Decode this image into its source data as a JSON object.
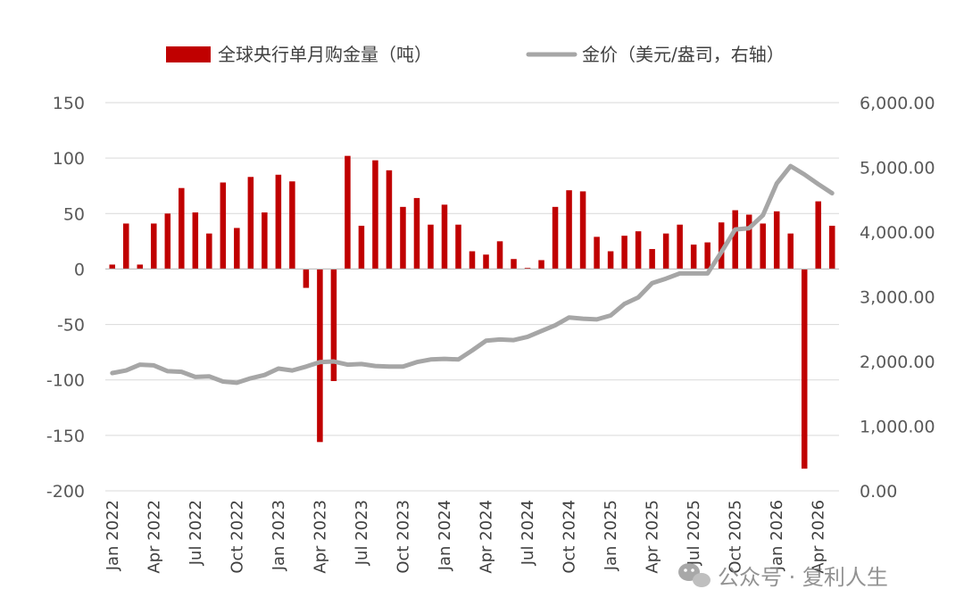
{
  "chart_data": {
    "type": "bar+line",
    "categories": [
      "Jan 2022",
      "Feb 2022",
      "Mar 2022",
      "Apr 2022",
      "May 2022",
      "Jun 2022",
      "Jul 2022",
      "Aug 2022",
      "Sep 2022",
      "Oct 2022",
      "Nov 2022",
      "Dec 2022",
      "Jan 2023",
      "Feb 2023",
      "Mar 2023",
      "Apr 2023",
      "May 2023",
      "Jun 2023",
      "Jul 2023",
      "Aug 2023",
      "Sep 2023",
      "Oct 2023",
      "Nov 2023",
      "Dec 2023",
      "Jan 2024",
      "Feb 2024",
      "Mar 2024",
      "Apr 2024",
      "May 2024",
      "Jun 2024",
      "Jul 2024",
      "Aug 2024",
      "Sep 2024",
      "Oct 2024",
      "Nov 2024",
      "Dec 2024",
      "Jan 2025",
      "Feb 2025",
      "Mar 2025",
      "Apr 2025",
      "May 2025",
      "Jun 2025",
      "Jul 2025",
      "Aug 2025",
      "Sep 2025",
      "Oct 2025",
      "Nov 2025",
      "Dec 2025",
      "Jan 2026",
      "Feb 2026",
      "Mar 2026",
      "Apr 2026",
      "May 2026"
    ],
    "x_tick_labels": [
      "Jan 2022",
      "Apr 2022",
      "Jul 2022",
      "Oct 2022",
      "Jan 2023",
      "Apr 2023",
      "Jul 2023",
      "Oct 2023",
      "Jan 2024",
      "Apr 2024",
      "Jul 2024",
      "Oct 2024",
      "Jan 2025",
      "Apr 2025",
      "Jul 2025",
      "Oct 2025",
      "Jan 2026",
      "Apr 2026"
    ],
    "series": [
      {
        "name": "全球央行单月购金量（吨）",
        "type": "bar",
        "axis": "left",
        "color": "#C00000",
        "values": [
          4,
          41,
          4,
          41,
          50,
          73,
          51,
          32,
          78,
          37,
          83,
          51,
          85,
          79,
          -17,
          -156,
          -101,
          102,
          39,
          98,
          89,
          56,
          64,
          40,
          58,
          40,
          16,
          13,
          25,
          9,
          1,
          8,
          56,
          71,
          70,
          29,
          16,
          30,
          34,
          18,
          32,
          40,
          22,
          24,
          42,
          53,
          49,
          41,
          52,
          32,
          -180,
          61,
          39
        ]
      },
      {
        "name": "金价（美元/盎司，右轴）",
        "type": "line",
        "axis": "right",
        "color": "#A6A6A6",
        "values": [
          1820,
          1860,
          1950,
          1940,
          1850,
          1840,
          1760,
          1770,
          1690,
          1670,
          1740,
          1790,
          1890,
          1860,
          1920,
          1990,
          2000,
          1950,
          1960,
          1930,
          1920,
          1920,
          1990,
          2030,
          2040,
          2030,
          2170,
          2320,
          2340,
          2330,
          2380,
          2470,
          2560,
          2680,
          2660,
          2650,
          2710,
          2890,
          2990,
          3210,
          3280,
          3360,
          3360,
          3360,
          3690,
          4040,
          4060,
          4260,
          4750,
          5020,
          4890,
          4740,
          4600
        ]
      }
    ],
    "ylim_left": [
      -200,
      150
    ],
    "yticks_left": [
      "150",
      "100",
      "50",
      "0",
      "-50",
      "-100",
      "-150",
      "-200"
    ],
    "ylim_right": [
      0,
      6000
    ],
    "yticks_right": [
      "6,000.00",
      "5,000.00",
      "4,000.00",
      "3,000.00",
      "2,000.00",
      "1,000.00",
      "0.00"
    ],
    "legend_position": "top"
  },
  "legend": {
    "bar_label": "全球央行单月购金量（吨）",
    "line_label": "金价（美元/盎司，右轴）"
  },
  "watermark": {
    "text": "公众号 · 复利人生",
    "icon": "wechat-icon"
  }
}
